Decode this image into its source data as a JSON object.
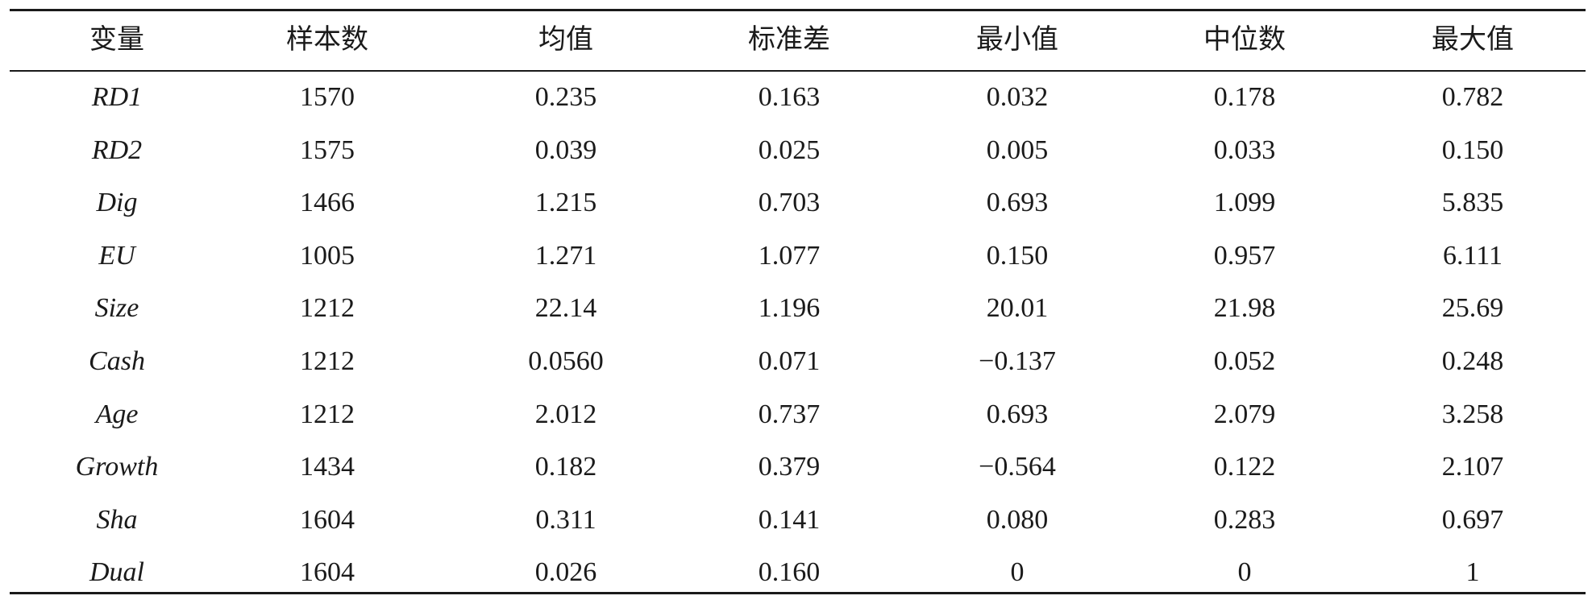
{
  "table": {
    "header": [
      "变量",
      "样本数",
      "均值",
      "标准差",
      "最小值",
      "中位数",
      "最大值"
    ],
    "rows": [
      [
        "RD1",
        "1570",
        "0.235",
        "0.163",
        "0.032",
        "0.178",
        "0.782"
      ],
      [
        "RD2",
        "1575",
        "0.039",
        "0.025",
        "0.005",
        "0.033",
        "0.150"
      ],
      [
        "Dig",
        "1466",
        "1.215",
        "0.703",
        "0.693",
        "1.099",
        "5.835"
      ],
      [
        "EU",
        "1005",
        "1.271",
        "1.077",
        "0.150",
        "0.957",
        "6.111"
      ],
      [
        "Size",
        "1212",
        "22.14",
        "1.196",
        "20.01",
        "21.98",
        "25.69"
      ],
      [
        "Cash",
        "1212",
        "0.0560",
        "0.071",
        "−0.137",
        "0.052",
        "0.248"
      ],
      [
        "Age",
        "1212",
        "2.012",
        "0.737",
        "0.693",
        "2.079",
        "3.258"
      ],
      [
        "Growth",
        "1434",
        "0.182",
        "0.379",
        "−0.564",
        "0.122",
        "2.107"
      ],
      [
        "Sha",
        "1604",
        "0.311",
        "0.141",
        "0.080",
        "0.283",
        "0.697"
      ],
      [
        "Dual",
        "1604",
        "0.026",
        "0.160",
        "0",
        "0",
        "1"
      ]
    ]
  }
}
